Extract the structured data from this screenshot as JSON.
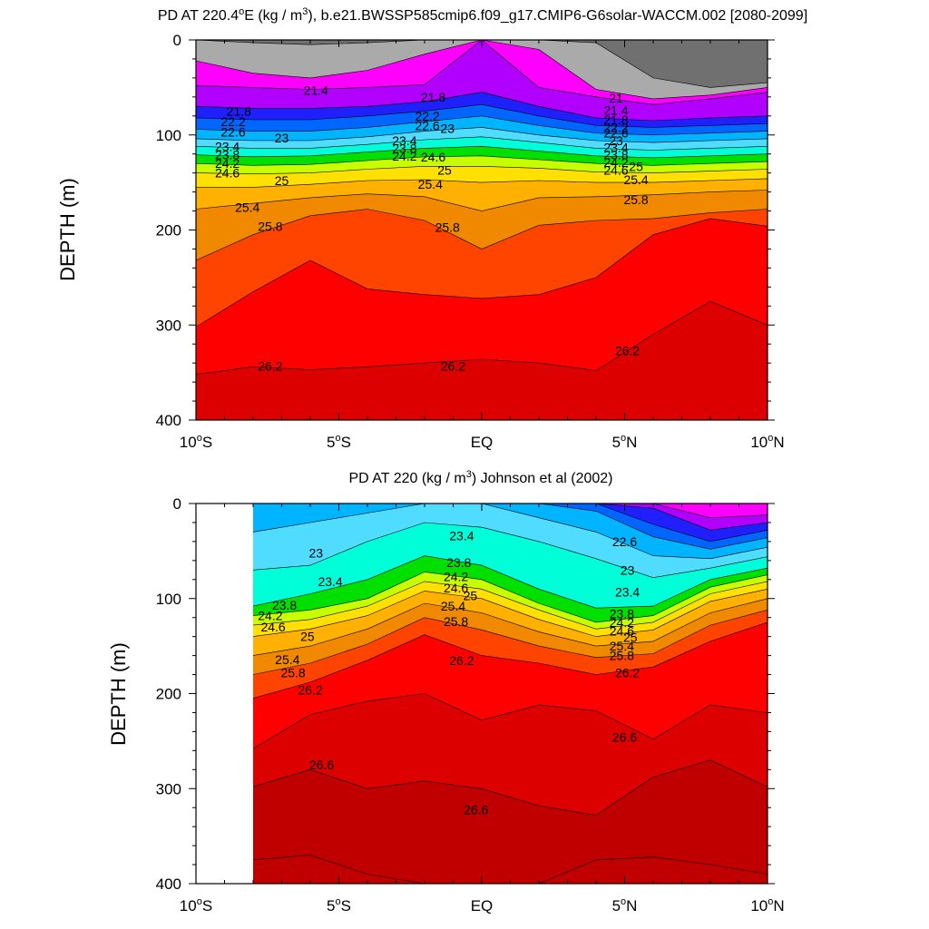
{
  "chart_data": [
    {
      "type": "contour",
      "title_prefix": "PD AT 220.4",
      "title_sup1": "o",
      "title_mid": "E (kg / m",
      "title_sup2": "3",
      "title_suffix": "), b.e21.BWSSP585cmip6.f09_g17.CMIP6-G6solar-WACCM.002 [2080-2099]",
      "ylabel": "DEPTH (m)",
      "xlabel": "",
      "xlim": [
        -10,
        10
      ],
      "ylim": [
        0,
        400
      ],
      "y_reversed": true,
      "x_ticks": [
        {
          "value": -10,
          "main": "10",
          "sup": "o",
          "suffix": "S"
        },
        {
          "value": -5,
          "main": "5",
          "sup": "o",
          "suffix": "S"
        },
        {
          "value": 0,
          "main": "EQ",
          "sup": "",
          "suffix": ""
        },
        {
          "value": 5,
          "main": "5",
          "sup": "o",
          "suffix": "N"
        },
        {
          "value": 10,
          "main": "10",
          "sup": "o",
          "suffix": "N"
        }
      ],
      "y_ticks": [
        0,
        100,
        200,
        300,
        400
      ],
      "data_x_range": [
        -10,
        10
      ],
      "levels": [
        20.6,
        21.0,
        21.4,
        21.8,
        22.2,
        22.6,
        23.0,
        23.4,
        23.8,
        24.2,
        24.6,
        25.0,
        25.4,
        25.8,
        26.2
      ],
      "x": [
        -10,
        -8,
        -6,
        -4,
        -2,
        0,
        2,
        4,
        6,
        8,
        10
      ],
      "isopycnal_depths": [
        {
          "level": 20.6,
          "y": [
            0,
            3,
            5,
            3,
            0,
            0,
            0,
            3,
            40,
            50,
            45
          ]
        },
        {
          "level": 21.0,
          "y": [
            22,
            35,
            40,
            32,
            15,
            0,
            10,
            52,
            62,
            58,
            50
          ]
        },
        {
          "level": 21.4,
          "y": [
            48,
            50,
            52,
            50,
            47,
            0,
            50,
            60,
            68,
            62,
            55
          ]
        },
        {
          "level": 21.8,
          "y": [
            70,
            72,
            72,
            70,
            65,
            55,
            70,
            82,
            85,
            82,
            80
          ]
        },
        {
          "level": 22.2,
          "y": [
            82,
            84,
            84,
            80,
            75,
            68,
            80,
            90,
            92,
            90,
            88
          ]
        },
        {
          "level": 22.6,
          "y": [
            94,
            96,
            96,
            92,
            86,
            80,
            90,
            98,
            100,
            98,
            96
          ]
        },
        {
          "level": 23.0,
          "y": [
            104,
            106,
            106,
            102,
            96,
            92,
            100,
            106,
            108,
            106,
            104
          ]
        },
        {
          "level": 23.4,
          "y": [
            112,
            114,
            114,
            110,
            105,
            102,
            108,
            114,
            116,
            114,
            112
          ]
        },
        {
          "level": 23.8,
          "y": [
            121,
            123,
            122,
            118,
            114,
            112,
            117,
            122,
            124,
            122,
            120
          ]
        },
        {
          "level": 24.2,
          "y": [
            130,
            132,
            131,
            127,
            123,
            122,
            126,
            130,
            132,
            130,
            128
          ]
        },
        {
          "level": 24.6,
          "y": [
            140,
            141,
            140,
            136,
            133,
            133,
            135,
            139,
            140,
            138,
            136
          ]
        },
        {
          "level": 25.0,
          "y": [
            155,
            155,
            152,
            148,
            147,
            150,
            148,
            150,
            150,
            148,
            146
          ]
        },
        {
          "level": 25.4,
          "y": [
            178,
            172,
            166,
            162,
            165,
            180,
            166,
            165,
            163,
            160,
            158
          ]
        },
        {
          "level": 25.8,
          "y": [
            232,
            205,
            185,
            178,
            190,
            220,
            195,
            190,
            188,
            182,
            178
          ]
        },
        {
          "level": 26.2,
          "y": [
            302,
            265,
            232,
            262,
            268,
            272,
            268,
            250,
            205,
            188,
            196
          ]
        }
      ],
      "deepest_isopycnal": {
        "level": 26.6,
        "y": [
          352,
          344,
          347,
          344,
          340,
          336,
          340,
          348,
          310,
          275,
          300
        ]
      },
      "contour_labels": [
        {
          "text": "21.4",
          "x": -5.8,
          "y": 53
        },
        {
          "text": "21.8",
          "x": -8.5,
          "y": 75
        },
        {
          "text": "22.2",
          "x": -8.7,
          "y": 86
        },
        {
          "text": "22.6",
          "x": -8.7,
          "y": 97
        },
        {
          "text": "23",
          "x": -7.0,
          "y": 103
        },
        {
          "text": "23.4",
          "x": -8.9,
          "y": 112
        },
        {
          "text": "23.8",
          "x": -8.9,
          "y": 121
        },
        {
          "text": "24.2",
          "x": -8.9,
          "y": 130
        },
        {
          "text": "24.6",
          "x": -8.9,
          "y": 140
        },
        {
          "text": "25",
          "x": -7.0,
          "y": 148
        },
        {
          "text": "25.4",
          "x": -8.2,
          "y": 176
        },
        {
          "text": "25.8",
          "x": -7.4,
          "y": 196
        },
        {
          "text": "26.2",
          "x": -7.4,
          "y": 343
        },
        {
          "text": "21.8",
          "x": -1.7,
          "y": 60
        },
        {
          "text": "22.2",
          "x": -1.9,
          "y": 80
        },
        {
          "text": "22.6",
          "x": -1.9,
          "y": 90
        },
        {
          "text": "23",
          "x": -1.2,
          "y": 93
        },
        {
          "text": "23.4",
          "x": -2.7,
          "y": 106
        },
        {
          "text": "23.8",
          "x": -2.7,
          "y": 114
        },
        {
          "text": "24.2",
          "x": -2.7,
          "y": 122
        },
        {
          "text": "24.6",
          "x": -1.7,
          "y": 123
        },
        {
          "text": "25",
          "x": -1.3,
          "y": 137
        },
        {
          "text": "25.4",
          "x": -1.8,
          "y": 152
        },
        {
          "text": "25.8",
          "x": -1.2,
          "y": 197
        },
        {
          "text": "26.2",
          "x": -1.0,
          "y": 343
        },
        {
          "text": "21",
          "x": 4.7,
          "y": 61
        },
        {
          "text": "21.4",
          "x": 4.7,
          "y": 74
        },
        {
          "text": "21.8",
          "x": 4.7,
          "y": 84
        },
        {
          "text": "22.2",
          "x": 4.7,
          "y": 92
        },
        {
          "text": "22.6",
          "x": 4.7,
          "y": 98
        },
        {
          "text": "23",
          "x": 4.7,
          "y": 106
        },
        {
          "text": "23.4",
          "x": 4.7,
          "y": 113
        },
        {
          "text": "23.8",
          "x": 4.7,
          "y": 121
        },
        {
          "text": "24.2",
          "x": 4.7,
          "y": 129
        },
        {
          "text": "24.6",
          "x": 4.7,
          "y": 137
        },
        {
          "text": "25",
          "x": 5.4,
          "y": 133
        },
        {
          "text": "25.4",
          "x": 5.4,
          "y": 147
        },
        {
          "text": "25.8",
          "x": 5.4,
          "y": 168
        },
        {
          "text": "26.2",
          "x": 5.1,
          "y": 327
        }
      ]
    },
    {
      "type": "contour",
      "title_prefix": "PD AT 220 (kg / m",
      "title_sup": "3",
      "title_suffix": ") Johnson et al (2002)",
      "ylabel": "DEPTH (m)",
      "xlabel": "",
      "xlim": [
        -10,
        10
      ],
      "ylim": [
        0,
        400
      ],
      "y_reversed": true,
      "x_ticks": [
        {
          "value": -10,
          "main": "10",
          "sup": "o",
          "suffix": "S"
        },
        {
          "value": -5,
          "main": "5",
          "sup": "o",
          "suffix": "S"
        },
        {
          "value": 0,
          "main": "EQ",
          "sup": "",
          "suffix": ""
        },
        {
          "value": 5,
          "main": "5",
          "sup": "o",
          "suffix": "N"
        },
        {
          "value": 10,
          "main": "10",
          "sup": "o",
          "suffix": "N"
        }
      ],
      "y_ticks": [
        0,
        100,
        200,
        300,
        400
      ],
      "data_x_range": [
        -8,
        10
      ],
      "levels": [
        21.4,
        21.8,
        22.2,
        22.6,
        23.0,
        23.4,
        23.8,
        24.2,
        24.6,
        25.0,
        25.4,
        25.8,
        26.2,
        26.6,
        27.0
      ],
      "x": [
        -8,
        -6,
        -4,
        -2,
        0,
        2,
        4,
        6,
        8,
        10
      ],
      "isopycnal_depths": [
        {
          "level": 21.4,
          "y": [
            0,
            0,
            0,
            0,
            0,
            0,
            0,
            0,
            15,
            12
          ]
        },
        {
          "level": 21.8,
          "y": [
            0,
            0,
            0,
            0,
            0,
            0,
            0,
            5,
            28,
            20
          ]
        },
        {
          "level": 22.2,
          "y": [
            0,
            0,
            0,
            0,
            0,
            0,
            0,
            22,
            40,
            28
          ]
        },
        {
          "level": 22.6,
          "y": [
            0,
            0,
            0,
            0,
            0,
            0,
            8,
            35,
            48,
            36
          ]
        },
        {
          "level": 23.0,
          "y": [
            30,
            20,
            10,
            0,
            0,
            15,
            30,
            55,
            58,
            46
          ]
        },
        {
          "level": 23.4,
          "y": [
            70,
            65,
            40,
            20,
            25,
            40,
            58,
            78,
            68,
            56
          ]
        },
        {
          "level": 23.8,
          "y": [
            108,
            95,
            80,
            55,
            65,
            90,
            110,
            108,
            80,
            68
          ]
        },
        {
          "level": 24.2,
          "y": [
            118,
            112,
            100,
            72,
            80,
            105,
            125,
            118,
            88,
            75
          ]
        },
        {
          "level": 24.6,
          "y": [
            128,
            122,
            108,
            82,
            90,
            112,
            132,
            125,
            95,
            82
          ]
        },
        {
          "level": 25.0,
          "y": [
            140,
            132,
            118,
            92,
            100,
            122,
            140,
            133,
            103,
            90
          ]
        },
        {
          "level": 25.4,
          "y": [
            160,
            150,
            132,
            105,
            115,
            135,
            150,
            145,
            115,
            100
          ]
        },
        {
          "level": 25.8,
          "y": [
            180,
            168,
            148,
            120,
            133,
            150,
            162,
            158,
            128,
            112
          ]
        },
        {
          "level": 26.2,
          "y": [
            205,
            188,
            165,
            138,
            160,
            168,
            180,
            172,
            145,
            125
          ]
        },
        {
          "level": 26.6,
          "y": [
            258,
            222,
            208,
            200,
            228,
            212,
            218,
            248,
            212,
            220
          ]
        },
        {
          "level": 27.0,
          "y": [
            298,
            280,
            300,
            292,
            300,
            318,
            328,
            288,
            270,
            298
          ]
        }
      ],
      "deepest_isopycnal": {
        "level": 27.4,
        "y": [
          375,
          370,
          390,
          400,
          400,
          400,
          375,
          372,
          380,
          390
        ]
      },
      "contour_labels": [
        {
          "text": "23",
          "x": -5.8,
          "y": 52
        },
        {
          "text": "23.4",
          "x": -5.3,
          "y": 82
        },
        {
          "text": "23.8",
          "x": -6.9,
          "y": 107
        },
        {
          "text": "24.2",
          "x": -7.4,
          "y": 118
        },
        {
          "text": "24.6",
          "x": -7.3,
          "y": 130
        },
        {
          "text": "25",
          "x": -6.1,
          "y": 140
        },
        {
          "text": "25.4",
          "x": -6.8,
          "y": 164
        },
        {
          "text": "25.8",
          "x": -6.6,
          "y": 178
        },
        {
          "text": "26.2",
          "x": -6.0,
          "y": 196
        },
        {
          "text": "26.6",
          "x": -5.6,
          "y": 275
        },
        {
          "text": "23.4",
          "x": -0.7,
          "y": 34
        },
        {
          "text": "23.8",
          "x": -0.8,
          "y": 62
        },
        {
          "text": "24.2",
          "x": -0.9,
          "y": 77
        },
        {
          "text": "24.6",
          "x": -0.9,
          "y": 89
        },
        {
          "text": "25",
          "x": -0.4,
          "y": 97
        },
        {
          "text": "25.4",
          "x": -1.0,
          "y": 108
        },
        {
          "text": "25.8",
          "x": -0.9,
          "y": 124
        },
        {
          "text": "26.2",
          "x": -0.7,
          "y": 165
        },
        {
          "text": "26.6",
          "x": -0.2,
          "y": 322
        },
        {
          "text": "22.6",
          "x": 5.0,
          "y": 40
        },
        {
          "text": "23",
          "x": 5.1,
          "y": 70
        },
        {
          "text": "23.4",
          "x": 5.1,
          "y": 93
        },
        {
          "text": "23.8",
          "x": 4.9,
          "y": 116
        },
        {
          "text": "24.2",
          "x": 4.9,
          "y": 125
        },
        {
          "text": "24.6",
          "x": 4.9,
          "y": 134
        },
        {
          "text": "25",
          "x": 5.2,
          "y": 141
        },
        {
          "text": "25.4",
          "x": 4.9,
          "y": 150
        },
        {
          "text": "25.8",
          "x": 4.9,
          "y": 160
        },
        {
          "text": "26.2",
          "x": 5.1,
          "y": 178
        },
        {
          "text": "26.6",
          "x": 5.0,
          "y": 246
        }
      ]
    }
  ]
}
